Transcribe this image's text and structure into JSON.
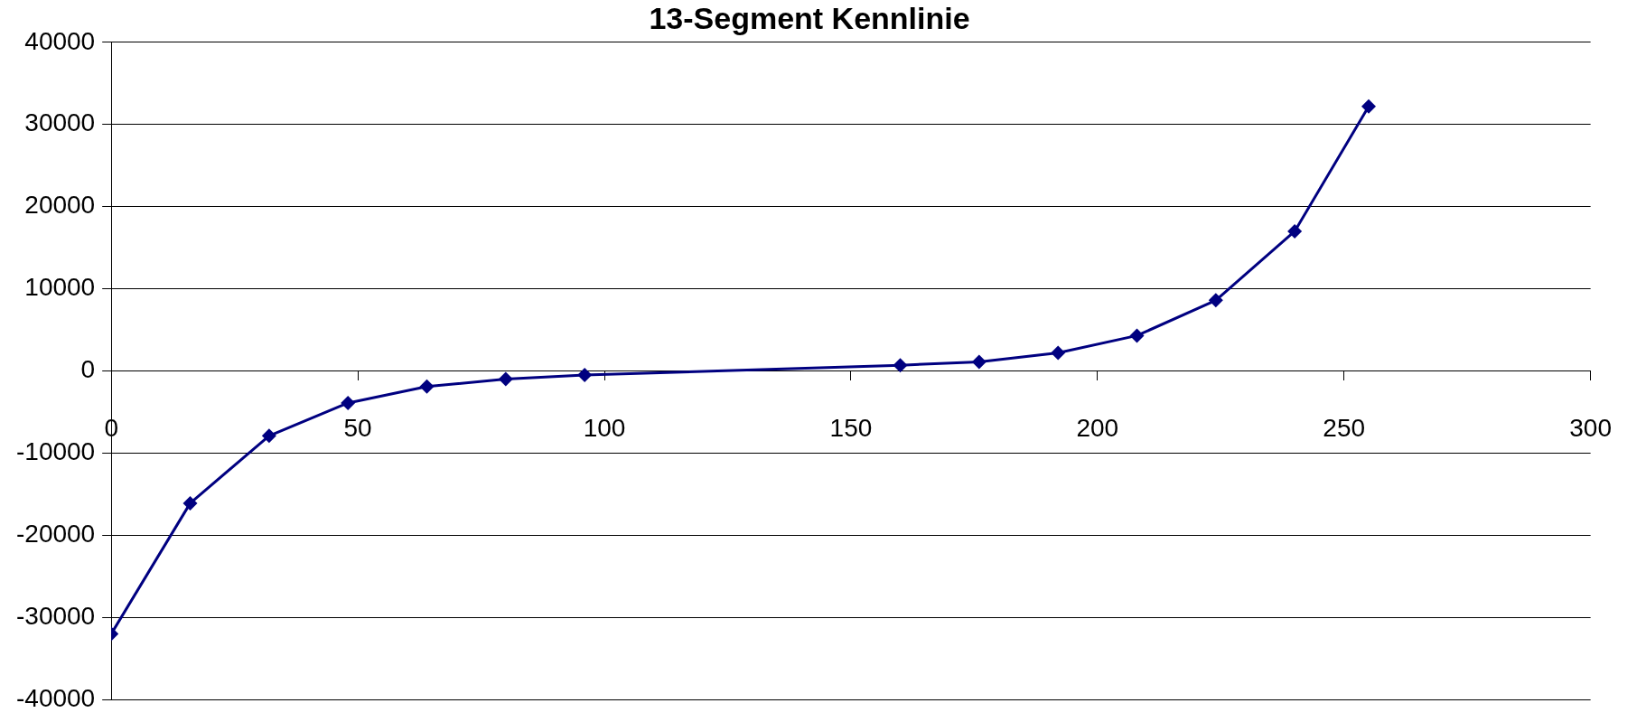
{
  "chart_data": {
    "type": "line",
    "title": "13-Segment Kennlinie",
    "x": [
      0,
      16,
      32,
      48,
      64,
      80,
      96,
      160,
      176,
      192,
      208,
      224,
      240,
      255
    ],
    "series": [
      {
        "color": "#000080",
        "values": [
          -32000,
          -16100,
          -7900,
          -3900,
          -1900,
          -1000,
          -500,
          700,
          1100,
          2200,
          4300,
          8600,
          17000,
          32200
        ]
      }
    ],
    "xlim": [
      0,
      300
    ],
    "xticks": [
      0,
      50,
      100,
      150,
      200,
      250,
      300
    ],
    "ylim": [
      -40000,
      40000
    ],
    "yticks": [
      -40000,
      -30000,
      -20000,
      -10000,
      0,
      10000,
      20000,
      30000,
      40000
    ],
    "grid": "y",
    "legend": false,
    "marker": "diamond",
    "line_style": "solid"
  }
}
